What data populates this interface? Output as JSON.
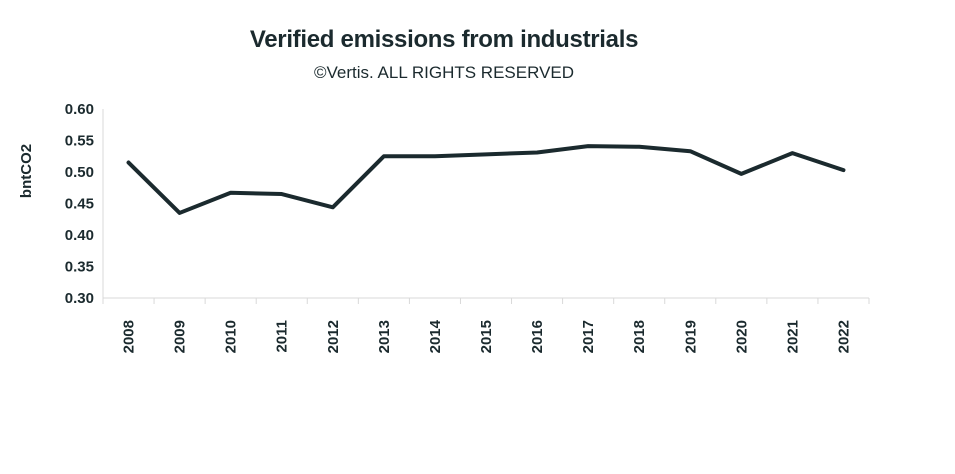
{
  "chart_data": {
    "type": "line",
    "title": "Verified emissions from industrials",
    "subtitle": "©Vertis. ALL RIGHTS RESERVED",
    "xlabel": "",
    "ylabel": "bntCO2",
    "ylim": [
      0.3,
      0.6
    ],
    "yticks": [
      "0.60",
      "0.55",
      "0.50",
      "0.45",
      "0.40",
      "0.35",
      "0.30"
    ],
    "categories": [
      "2008",
      "2009",
      "2010",
      "2011",
      "2012",
      "2013",
      "2014",
      "2015",
      "2016",
      "2017",
      "2018",
      "2019",
      "2020",
      "2021",
      "2022"
    ],
    "series": [
      {
        "values": [
          0.515,
          0.435,
          0.467,
          0.465,
          0.444,
          0.525,
          0.525,
          0.528,
          0.531,
          0.541,
          0.54,
          0.533,
          0.497,
          0.53,
          0.503
        ],
        "color": "#1b2a2e"
      }
    ],
    "grid": false,
    "legend": "none"
  }
}
